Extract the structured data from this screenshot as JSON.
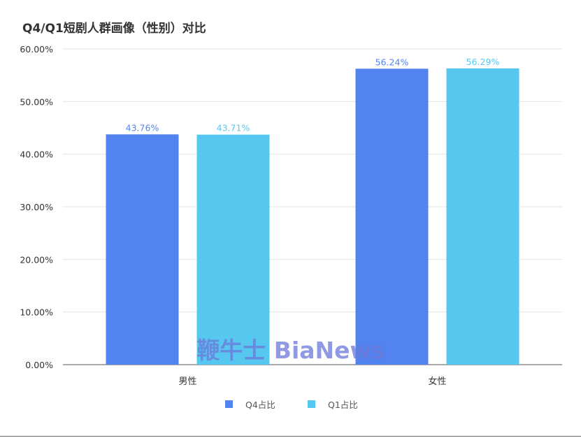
{
  "chart_data": {
    "type": "bar",
    "title": "Q4/Q1短剧人群画像（性别）对比",
    "categories": [
      "男性",
      "女性"
    ],
    "series": [
      {
        "name": "Q4占比",
        "values": [
          43.76,
          56.24
        ],
        "labels": [
          "43.76%",
          "56.24%"
        ],
        "color": "#5383EE"
      },
      {
        "name": "Q1占比",
        "values": [
          43.71,
          56.29
        ],
        "labels": [
          "43.71%",
          "56.29%"
        ],
        "color": "#56C8F0"
      }
    ],
    "ylim": [
      0,
      60
    ],
    "yticks": [
      "0.00%",
      "10.00%",
      "20.00%",
      "30.00%",
      "40.00%",
      "50.00%",
      "60.00%"
    ],
    "xlabel": "",
    "ylabel": "",
    "grid": true,
    "legend_position": "bottom"
  },
  "watermark": "鞭牛士 BiaNews"
}
